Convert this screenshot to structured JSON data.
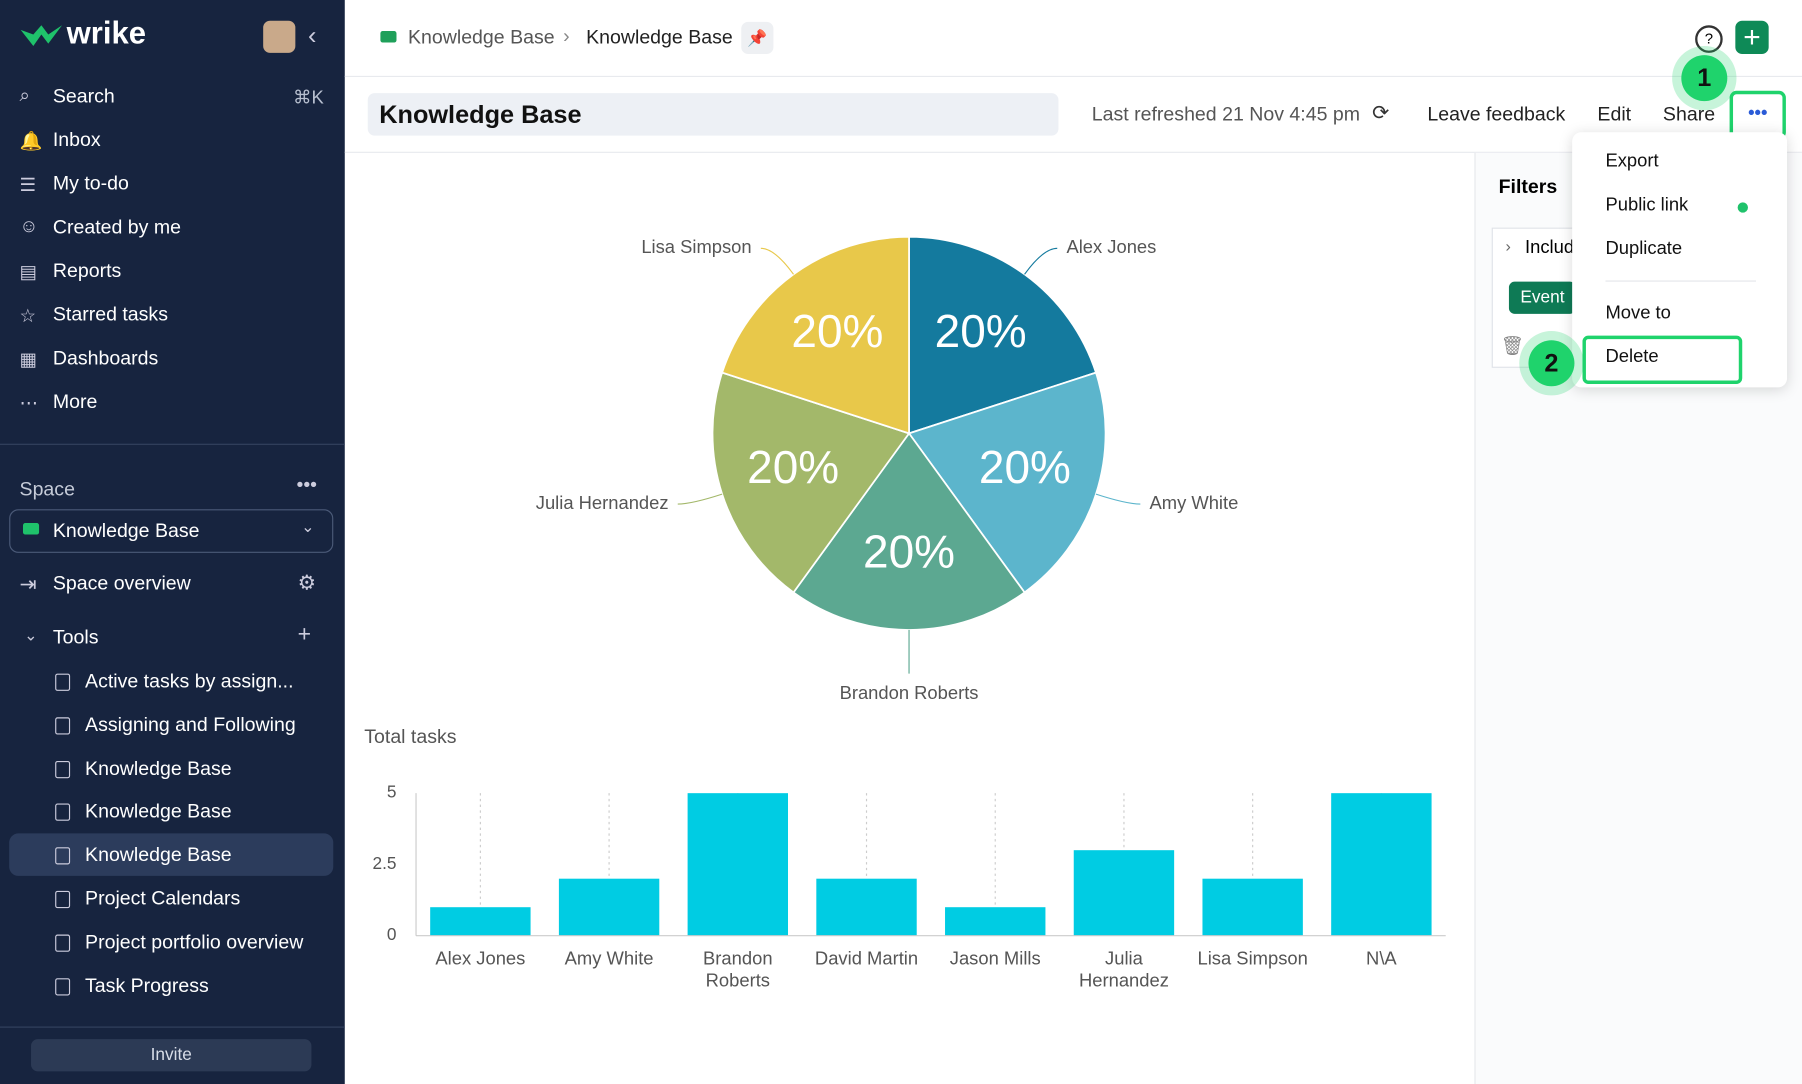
{
  "sidebar": {
    "logo": "wrike",
    "nav": [
      "Search",
      "Inbox",
      "My to-do",
      "Created by me",
      "Reports",
      "Starred tasks",
      "Dashboards",
      "More"
    ],
    "search_shortcut": "⌘K",
    "space_label": "Space",
    "space_name": "Knowledge Base",
    "space_overview": "Space overview",
    "tools_label": "Tools",
    "tools": [
      "Active tasks by assign...",
      "Assigning and Following",
      "Knowledge Base",
      "Knowledge Base",
      "Knowledge Base",
      "Project Calendars",
      "Project portfolio overview",
      "Task Progress"
    ],
    "invite": "Invite"
  },
  "header": {
    "breadcrumb": [
      "Knowledge Base",
      "Knowledge Base"
    ],
    "title": "Knowledge Base",
    "last_refreshed": "Last refreshed 21 Nov 4:45 pm",
    "actions": [
      "Leave feedback",
      "Edit",
      "Share"
    ]
  },
  "menu": {
    "items": [
      "Export",
      "Public link",
      "Duplicate",
      "Move to",
      "Delete"
    ]
  },
  "filters": {
    "title": "Filters",
    "include": "Includ",
    "tag": "Event"
  },
  "steps": [
    "1",
    "2"
  ],
  "chart_data": [
    {
      "type": "pie",
      "categories": [
        "Alex Jones",
        "Amy White",
        "Brandon Roberts",
        "Julia Hernandez",
        "Lisa Simpson"
      ],
      "values": [
        20,
        20,
        20,
        20,
        20
      ],
      "value_labels": [
        "20%",
        "20%",
        "20%",
        "20%",
        "20%"
      ],
      "colors": [
        "#147a9e",
        "#5cb5cc",
        "#5ca891",
        "#a3b86a",
        "#e8c84a"
      ]
    },
    {
      "type": "bar",
      "title": "Total tasks",
      "categories": [
        "Alex Jones",
        "Amy White",
        "Brandon Roberts",
        "David Martin",
        "Jason Mills",
        "Julia Hernandez",
        "Lisa Simpson",
        "N\\A"
      ],
      "values": [
        1,
        2,
        5,
        2,
        1,
        3,
        2,
        5
      ],
      "color": "#00cce3",
      "ylim": [
        0,
        5
      ],
      "yticks": [
        0,
        2.5,
        5
      ],
      "grid": true
    }
  ]
}
